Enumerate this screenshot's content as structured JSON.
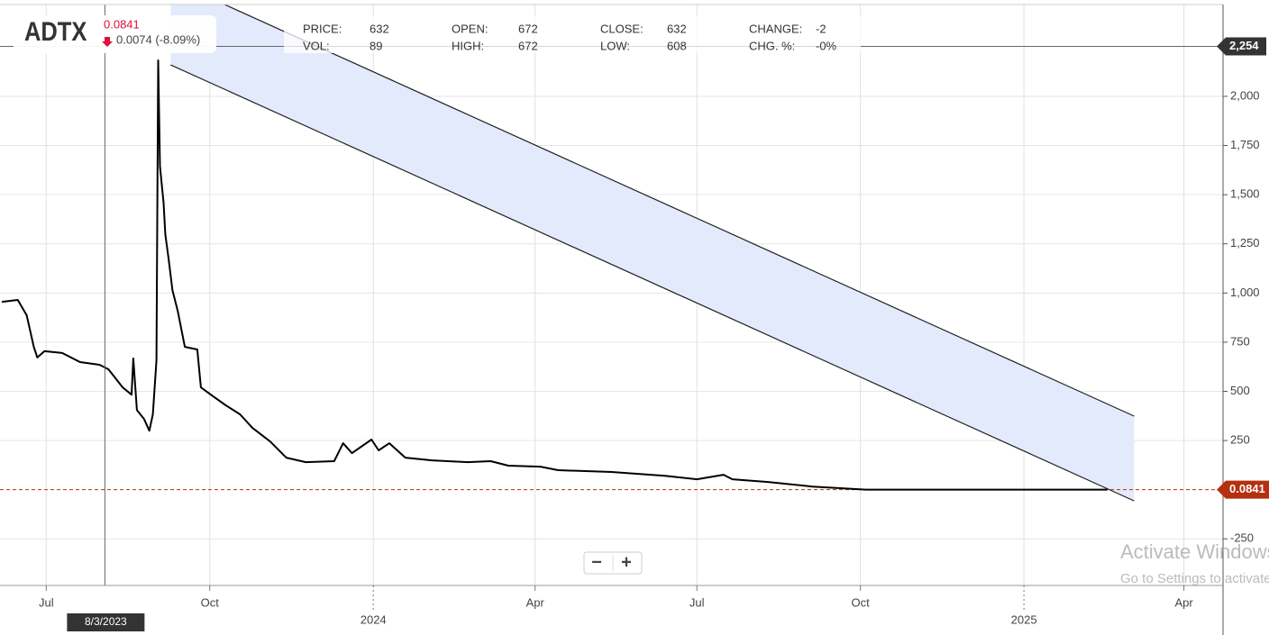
{
  "header": {
    "ticker": "ADTX",
    "change": "0.0074 (-8.09%)",
    "stats": [
      [
        {
          "label": "PRICE:",
          "value": "632"
        },
        {
          "label": "VOL:",
          "value": "89"
        }
      ],
      [
        {
          "label": "OPEN:",
          "value": "672"
        },
        {
          "label": "HIGH:",
          "value": "672"
        }
      ],
      [
        {
          "label": "CLOSE:",
          "value": "632"
        },
        {
          "label": "LOW:",
          "value": "608"
        }
      ],
      [
        {
          "label": "CHANGE:",
          "value": "-2"
        },
        {
          "label": "CHG. %:",
          "value": "-0%"
        }
      ]
    ]
  },
  "zoom": {
    "out": "−",
    "in": "+"
  },
  "watermark": {
    "title": "Activate Windows",
    "subtitle": "Go to Settings to activate Windows."
  },
  "chart_data": {
    "type": "line",
    "color": "#000000",
    "grid": true,
    "x": [
      "2023-06-06",
      "2023-06-15",
      "2023-06-20",
      "2023-06-24",
      "2023-06-26",
      "2023-06-30",
      "2023-07-10",
      "2023-07-20",
      "2023-07-31",
      "2023-08-05",
      "2023-08-13",
      "2023-08-18",
      "2023-08-19",
      "2023-08-21",
      "2023-08-25",
      "2023-08-28",
      "2023-08-30",
      "2023-09-01",
      "2023-09-02",
      "2023-09-03",
      "2023-09-05",
      "2023-09-06",
      "2023-09-08",
      "2023-09-10",
      "2023-09-13",
      "2023-09-17",
      "2023-09-24",
      "2023-09-26",
      "2023-10-03",
      "2023-10-10",
      "2023-10-18",
      "2023-10-25",
      "2023-11-04",
      "2023-11-13",
      "2023-11-24",
      "2023-12-10",
      "2023-12-15",
      "2023-12-20",
      "2023-12-31",
      "2024-01-04",
      "2024-01-10",
      "2024-01-19",
      "2024-02-03",
      "2024-02-23",
      "2024-03-07",
      "2024-03-17",
      "2024-04-04",
      "2024-04-14",
      "2024-05-14",
      "2024-06-13",
      "2024-07-01",
      "2024-07-16",
      "2024-07-21",
      "2024-08-10",
      "2024-09-04",
      "2024-10-04",
      "2024-11-19",
      "2025-02-17"
    ],
    "values": [
      955,
      965,
      887,
      726,
      672,
      704,
      695,
      649,
      635,
      612,
      520,
      483,
      667,
      405,
      360,
      300,
      383,
      658,
      2183,
      1643,
      1459,
      1299,
      1162,
      1015,
      909,
      726,
      713,
      520,
      474,
      429,
      383,
      314,
      245,
      163,
      140,
      145,
      236,
      186,
      255,
      200,
      236,
      163,
      149,
      140,
      145,
      122,
      117,
      99,
      90,
      71,
      53,
      76,
      53,
      39,
      16,
      0.5,
      0.3,
      0.0841
    ],
    "channel": {
      "x": [
        "2023-09-09",
        "2025-03-04"
      ],
      "upper": [
        2591,
        374
      ],
      "lower": [
        2160,
        -57
      ],
      "color": "#e3eafc"
    },
    "last_price": 0.0841,
    "last_color": "#b5300f",
    "crosshair": {
      "x": "2023-08-03",
      "x_label": "8/3/2023",
      "y": 2254,
      "y_label": "2,254"
    },
    "xlim": [
      "2023-06-05",
      "2025-04-23"
    ],
    "xticks": [
      {
        "value": "2023-07-01",
        "label": "Jul"
      },
      {
        "value": "2023-10-01",
        "label": "Oct"
      },
      {
        "value": "2024-01-01",
        "label": "2024"
      },
      {
        "value": "2024-04-01",
        "label": "Apr"
      },
      {
        "value": "2024-07-01",
        "label": "Jul"
      },
      {
        "value": "2024-10-01",
        "label": "Oct"
      },
      {
        "value": "2025-01-01",
        "label": "2025"
      },
      {
        "value": "2025-04-01",
        "label": "Apr"
      }
    ],
    "ylim": [
      -487,
      2467
    ],
    "yticks": [
      -250,
      250,
      500,
      750,
      {
        "value": 1000,
        "label": "1,000"
      },
      {
        "value": 1250,
        "label": "1,250"
      },
      {
        "value": 1500,
        "label": "1,500"
      },
      {
        "value": 1750,
        "label": "1,750"
      },
      {
        "value": 2000,
        "label": "2,000"
      }
    ]
  }
}
